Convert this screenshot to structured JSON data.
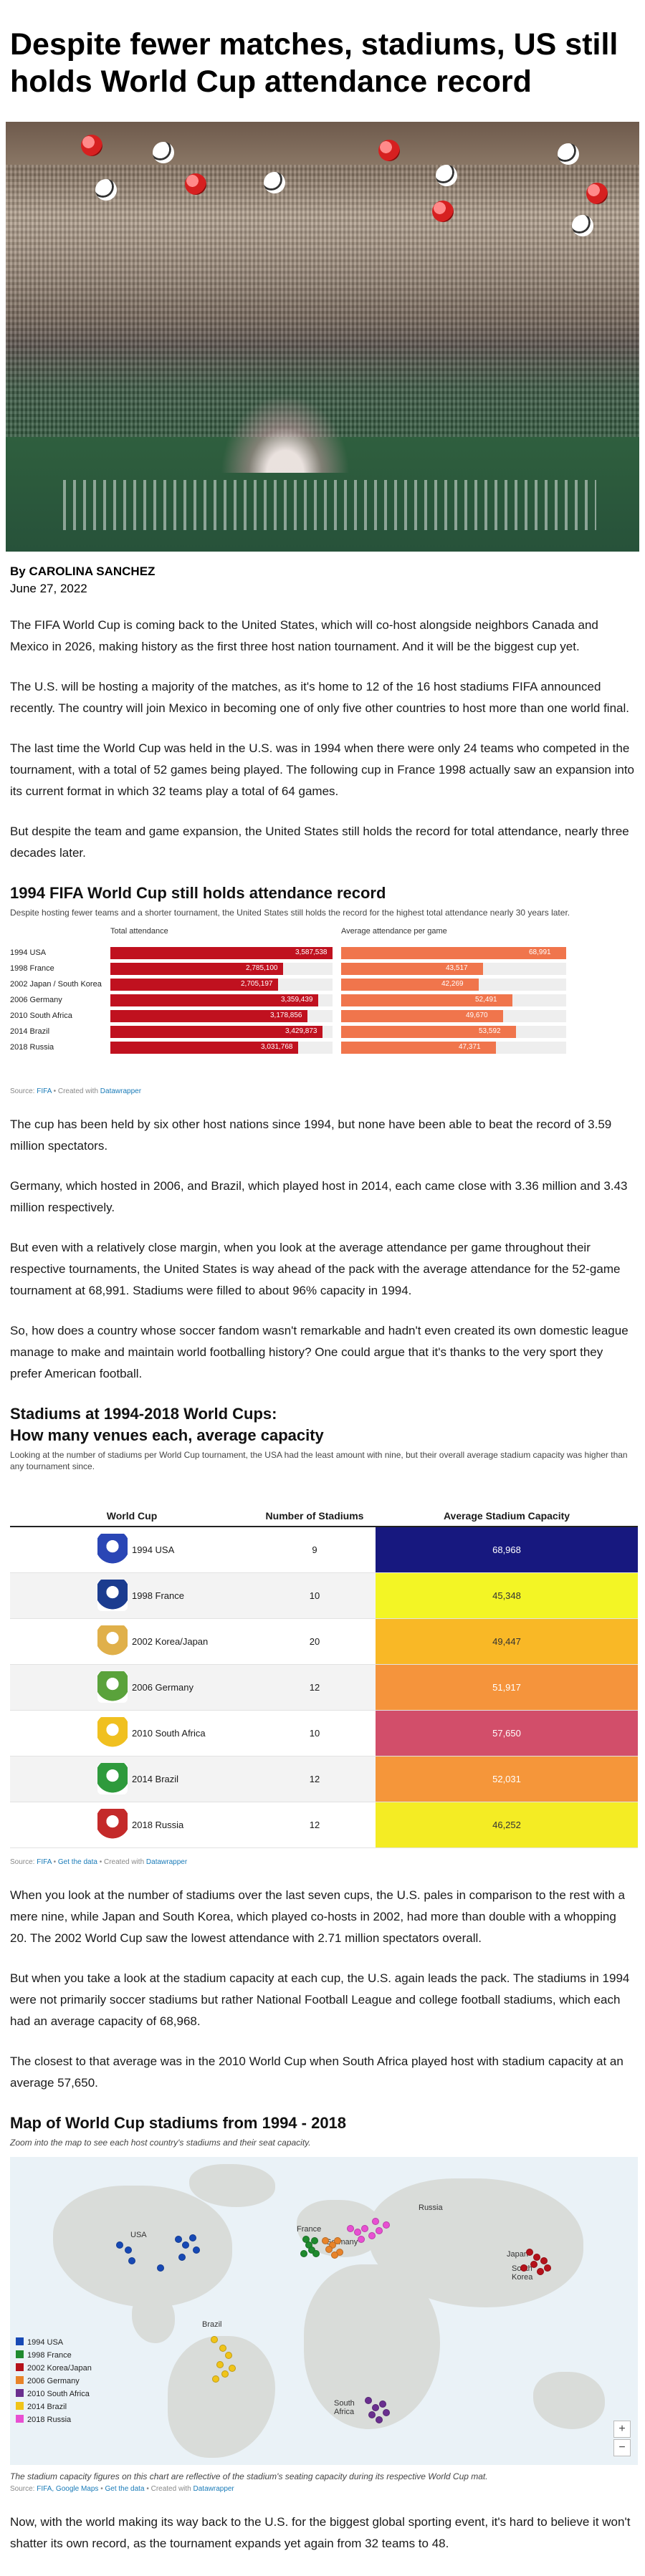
{
  "article": {
    "headline": "Despite fewer matches, stadiums, US still holds World Cup attendance record",
    "byline": "By CAROLINA SANCHEZ",
    "date": "June 27, 2022",
    "p1": "The FIFA World Cup is coming back to the United States, which will co-host alongside neighbors Canada and Mexico in 2026, making history as the first three host nation tournament. And it will be the biggest cup yet.",
    "p2": "The U.S. will be hosting a majority of the matches, as it's home to 12 of the 16 host stadiums FIFA announced recently. The country will join Mexico in becoming one of only five other countries to host more than one world final.",
    "p3": "The last time the World Cup was held in the U.S. was in 1994 when there were only 24 teams who competed in the tournament, with a total of 52 games being played. The following cup in France 1998 actually saw an expansion into its current format in which 32 teams play a total of 64 games.",
    "p4": "But despite the team and game expansion, the United States still holds the record for total attendance, nearly three decades later.",
    "p5": "The cup has been held by six other host nations since 1994, but none have been able to beat the record of 3.59 million spectators.",
    "p6": "Germany, which hosted in 2006, and Brazil, which played host in 2014, each came close with 3.36 million and 3.43 million respectively.",
    "p7": "But even with a relatively close margin, when you look at the average attendance per game throughout their respective tournaments, the United States is way ahead of the pack with the average attendance for the 52-game tournament at 68,991. Stadiums were filled to about 96% capacity in 1994.",
    "p8": "So, how does a country whose soccer fandom wasn't remarkable and hadn't even created its own domestic league manage to make and maintain world footballing history? One could argue that it's thanks to the very sport they prefer American football.",
    "p9": "When you look at the number of stadiums over the last seven cups, the U.S. pales in comparison to the rest with a mere nine, while Japan and South Korea, which played co-hosts in 2002, had more than double with a whopping 20. The 2002 World Cup saw the lowest attendance with 2.71 million spectators overall.",
    "p10": "But when you take a look at the stadium capacity at each cup, the U.S. again leads the pack. The stadiums in 1994 were not primarily soccer stadiums but rather National Football League and college football stadiums, which each had an average capacity of 68,968.",
    "p11": "The closest to that average was in the 2010 World Cup when South Africa played host with stadium capacity at an average 57,650.",
    "p12": "Now, with the world making its way back to the U.S. for the biggest global sporting event, it's hard to believe it won't shatter its own record, as the tournament expands yet again from 32 teams to 48."
  },
  "chart_data": [
    {
      "type": "bar",
      "title": "1994 FIFA World Cup still holds attendance record",
      "description": "Despite hosting fewer teams and a shorter tournament, the United States still holds the record for the highest total attendance nearly 30 years later.",
      "categories": [
        "1994 USA",
        "1998 France",
        "2002 Japan / South Korea",
        "2006 Germany",
        "2010 South Africa",
        "2014 Brazil",
        "2018 Russia"
      ],
      "series": [
        {
          "name": "Total attendance",
          "values": [
            3587538,
            2785100,
            2705197,
            3359439,
            3178856,
            3429873,
            3031768
          ],
          "labels": [
            "3,587,538",
            "2,785,100",
            "2,705,197",
            "3,359,439",
            "3,178,856",
            "3,429,873",
            "3,031,768"
          ],
          "color": "#c0111f"
        },
        {
          "name": "Average attendance per game",
          "values": [
            68991,
            43517,
            42269,
            52491,
            49670,
            53592,
            47371
          ],
          "labels": [
            "68,991",
            "43,517",
            "42,269",
            "52,491",
            "49,670",
            "53,592",
            "47,371"
          ],
          "color": "#f0754c"
        }
      ],
      "source_label": "Source:",
      "source_name": "FIFA",
      "credit_pre": "• Created with",
      "credit_tool": "Datawrapper"
    },
    {
      "type": "table",
      "title_line1": "Stadiums at 1994-2018 World Cups:",
      "title_line2": "How many venues each, average capacity",
      "description": "Looking at the number of stadiums per World Cup tournament, the USA had the least amount with nine, but their overall average stadium capacity was higher than any tournament since.",
      "columns": [
        "World Cup",
        "Number of Stadiums",
        "Average Stadium Capacity"
      ],
      "rows": [
        {
          "cup": "1994 USA",
          "stadiums": "9",
          "capacity": "68,968",
          "value": 68968,
          "color": "#17187f",
          "text_color": "#ffffff",
          "emblem": "emblem-1994-icon"
        },
        {
          "cup": "1998 France",
          "stadiums": "10",
          "capacity": "45,348",
          "value": 45348,
          "color": "#f3f525",
          "text_color": "#333333",
          "emblem": "emblem-1998-icon"
        },
        {
          "cup": "2002 Korea/Japan",
          "stadiums": "20",
          "capacity": "49,447",
          "value": 49447,
          "color": "#f9b826",
          "text_color": "#333333",
          "emblem": "emblem-2002-icon"
        },
        {
          "cup": "2006 Germany",
          "stadiums": "12",
          "capacity": "51,917",
          "value": 51917,
          "color": "#f5943c",
          "text_color": "#ffffff",
          "emblem": "emblem-2006-icon"
        },
        {
          "cup": "2010 South Africa",
          "stadiums": "10",
          "capacity": "57,650",
          "value": 57650,
          "color": "#d24e6a",
          "text_color": "#ffffff",
          "emblem": "emblem-2010-icon"
        },
        {
          "cup": "2014 Brazil",
          "stadiums": "12",
          "capacity": "52,031",
          "value": 52031,
          "color": "#f5963a",
          "text_color": "#ffffff",
          "emblem": "emblem-2014-icon"
        },
        {
          "cup": "2018 Russia",
          "stadiums": "12",
          "capacity": "46,252",
          "value": 46252,
          "color": "#f4ec24",
          "text_color": "#333333",
          "emblem": "emblem-2018-icon"
        }
      ],
      "source_label": "Source:",
      "source_name": "FIFA",
      "get_data": "Get the data",
      "credit_pre": "• Created with",
      "credit_tool": "Datawrapper"
    }
  ],
  "map": {
    "title": "Map of World Cup stadiums from 1994 - 2018",
    "subtitle": "Zoom into the map to see each host country's stadiums and their seat capacity.",
    "labels": {
      "usa": "USA",
      "france": "France",
      "germany": "Germany",
      "russia": "Russia",
      "japan": "Japan",
      "south_korea": "South Korea",
      "brazil": "Brazil",
      "south_africa": "South Africa"
    },
    "legend": [
      {
        "label": "1994 USA",
        "color": "#1749b5"
      },
      {
        "label": "1998 France",
        "color": "#1f8a2e"
      },
      {
        "label": "2002 Korea/Japan",
        "color": "#b5121b"
      },
      {
        "label": "2006 Germany",
        "color": "#e8842a"
      },
      {
        "label": "2010 South Africa",
        "color": "#6a2f8f"
      },
      {
        "label": "2014 Brazil",
        "color": "#f0c419"
      },
      {
        "label": "2018 Russia",
        "color": "#e84fd2"
      }
    ],
    "zoom_in": "+",
    "zoom_out": "−",
    "note": "The stadium capacity figures on this chart are reflective of the stadium's seating capacity during its respective World Cup mat.",
    "source_label": "Source:",
    "source_name": "FIFA, Google Maps",
    "get_data": "Get the data",
    "credit_pre": "• Created with",
    "credit_tool": "Datawrapper"
  }
}
